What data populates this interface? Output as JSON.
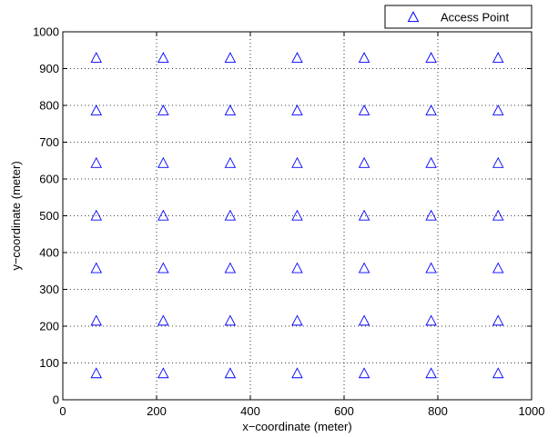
{
  "chart_data": {
    "type": "scatter",
    "xlabel": "x−coordinate (meter)",
    "ylabel": "y−coordinate (meter)",
    "xlim": [
      0,
      1000
    ],
    "ylim": [
      0,
      1000
    ],
    "xticks": [
      0,
      200,
      400,
      600,
      800,
      1000
    ],
    "yticks": [
      0,
      100,
      200,
      300,
      400,
      500,
      600,
      700,
      800,
      900,
      1000
    ],
    "grid": true,
    "grid_style": "dotted",
    "legend": "top-right, outside plot area",
    "series": [
      {
        "name": "Access Point",
        "marker": "triangle-up",
        "color": "#0000ff",
        "x": [
          71.4,
          214.3,
          357.1,
          500,
          642.9,
          785.7,
          928.6
        ],
        "y": [
          71.4,
          214.3,
          357.1,
          500,
          642.9,
          785.7,
          928.6
        ],
        "layout": "grid (all combinations of x and y)"
      }
    ]
  }
}
